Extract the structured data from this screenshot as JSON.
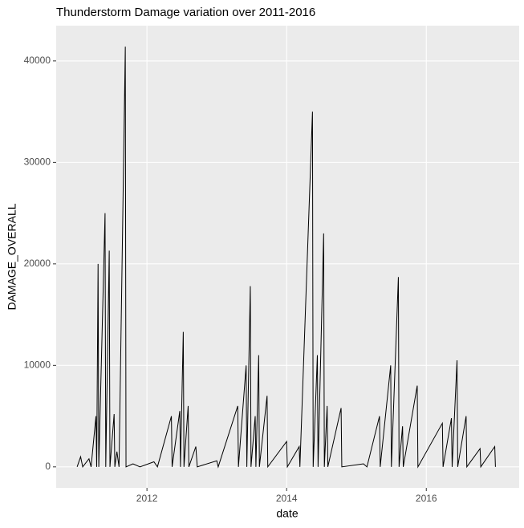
{
  "chart_data": {
    "type": "line",
    "title": "Thunderstorm Damage variation over 2011-2016",
    "x_label": "date",
    "y_label": "DAMAGE_OVERALL",
    "x": [
      2011.0,
      2011.05,
      2011.08,
      2011.17,
      2011.2,
      2011.27,
      2011.28,
      2011.3,
      2011.31,
      2011.4,
      2011.41,
      2011.46,
      2011.47,
      2011.53,
      2011.54,
      2011.57,
      2011.6,
      2011.69,
      2011.7,
      2011.8,
      2011.9,
      2012.1,
      2012.15,
      2012.35,
      2012.36,
      2012.47,
      2012.48,
      2012.52,
      2012.53,
      2012.59,
      2012.6,
      2012.7,
      2012.72,
      2013.0,
      2013.02,
      2013.3,
      2013.31,
      2013.42,
      2013.43,
      2013.48,
      2013.49,
      2013.55,
      2013.56,
      2013.6,
      2013.61,
      2013.72,
      2013.73,
      2014.0,
      2014.01,
      2014.18,
      2014.19,
      2014.37,
      2014.38,
      2014.44,
      2014.45,
      2014.53,
      2014.54,
      2014.58,
      2014.59,
      2014.78,
      2014.79,
      2015.1,
      2015.15,
      2015.33,
      2015.34,
      2015.49,
      2015.5,
      2015.6,
      2015.61,
      2015.66,
      2015.67,
      2015.87,
      2015.88,
      2016.23,
      2016.24,
      2016.36,
      2016.37,
      2016.44,
      2016.45,
      2016.57,
      2016.58,
      2016.77,
      2016.78,
      2016.98,
      2016.99
    ],
    "series": [
      {
        "name": "DAMAGE_OVERALL",
        "color": "#000000",
        "values": [
          0,
          1000,
          0,
          800,
          0,
          5000,
          0,
          20000,
          0,
          25000,
          0,
          21300,
          0,
          5200,
          0,
          1500,
          0,
          41400,
          0,
          300,
          0,
          500,
          0,
          5000,
          0,
          5500,
          0,
          13300,
          0,
          6000,
          0,
          2000,
          0,
          600,
          0,
          6000,
          0,
          10000,
          0,
          17800,
          0,
          5000,
          0,
          11000,
          0,
          7000,
          0,
          2500,
          0,
          2000,
          0,
          35000,
          0,
          11000,
          0,
          23000,
          0,
          6000,
          0,
          5800,
          0,
          300,
          0,
          5000,
          0,
          10000,
          0,
          18700,
          0,
          4000,
          0,
          8000,
          0,
          4300,
          0,
          4800,
          0,
          10500,
          0,
          5000,
          0,
          1800,
          0,
          2000,
          0
        ]
      }
    ],
    "xlim": [
      2010.7,
      2017.33
    ],
    "xticks": [
      2012,
      2014,
      2016
    ],
    "ylim": [
      -2070,
      43470
    ],
    "yticks": [
      0,
      10000,
      20000,
      30000,
      40000
    ],
    "grid": true
  }
}
